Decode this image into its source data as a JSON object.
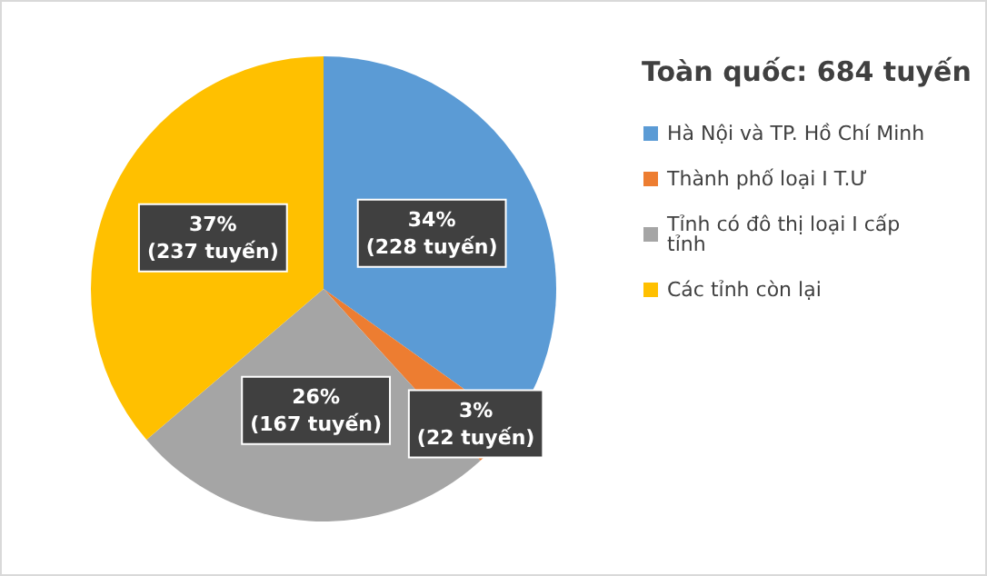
{
  "chart_data": {
    "type": "pie",
    "legend_title": "Toàn quốc: 684 tuyến",
    "legend": "right",
    "categories": [
      "Hà Nội và TP. Hồ Chí Minh",
      "Thành phố loại I T.Ư",
      "Tỉnh có đô thị loại I cấp tỉnh",
      "Các tỉnh còn lại"
    ],
    "values": [
      228,
      22,
      167,
      237
    ],
    "colors": [
      "#5b9bd5",
      "#ed7d31",
      "#a5a5a5",
      "#ffc000"
    ],
    "value_labels": [
      "34%\n(228 tuyến)",
      "3%\n(22 tuyến)",
      "26%\n(167 tuyến)",
      "37%\n(237 tuyến)"
    ]
  }
}
